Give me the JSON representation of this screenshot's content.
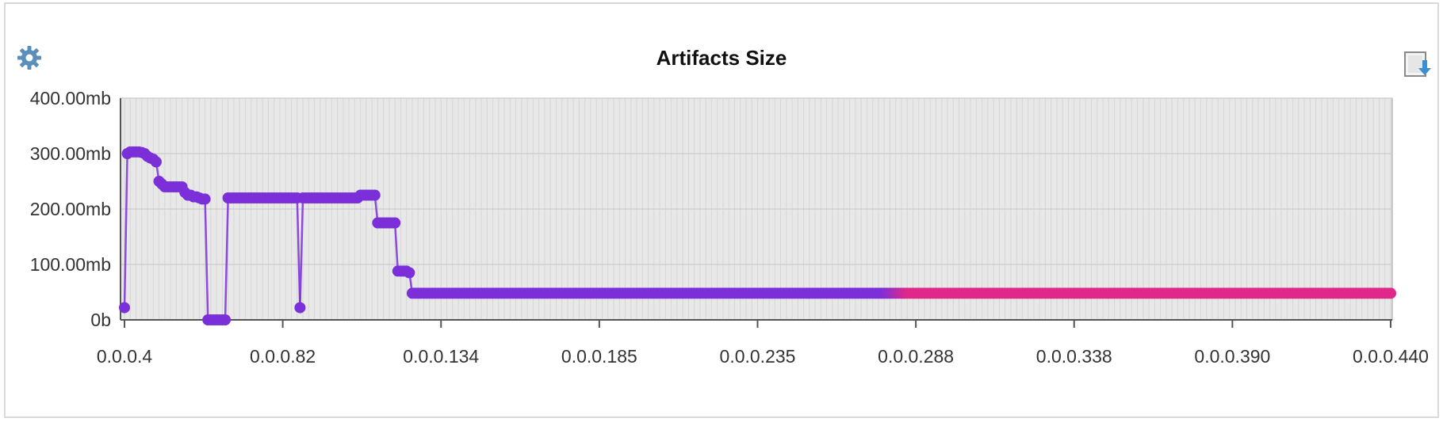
{
  "toolbar": {
    "settings_icon": "gear-icon",
    "export_icon": "export-download-icon",
    "accent_color": "#5b8fb9"
  },
  "chart_data": {
    "type": "line",
    "title": "Artifacts Size",
    "xlabel": "",
    "ylabel": "",
    "y_unit": "mb",
    "ylim": [
      0,
      400
    ],
    "y_ticks": [
      {
        "value": 0,
        "label": "0b"
      },
      {
        "value": 100,
        "label": "100.00mb"
      },
      {
        "value": 200,
        "label": "200.00mb"
      },
      {
        "value": 300,
        "label": "300.00mb"
      },
      {
        "value": 400,
        "label": "400.00mb"
      }
    ],
    "x_tick_labels": [
      "0.0.0.4",
      "0.0.0.82",
      "0.0.0.134",
      "0.0.0.185",
      "0.0.0.235",
      "0.0.0.288",
      "0.0.0.338",
      "0.0.0.390",
      "0.0.0.440"
    ],
    "grid": true,
    "legend": "none",
    "colors": {
      "line_start": "#7b2fd9",
      "line_end": "#e0288a",
      "grid": "#d0d0d0",
      "plot_bg": "#e8e8e8"
    },
    "series": [
      {
        "values": [
          22,
          300,
          303,
          303,
          303,
          303,
          302,
          300,
          295,
          292,
          290,
          285,
          250,
          245,
          240,
          240,
          240,
          240,
          240,
          240,
          240,
          230,
          225,
          225,
          222,
          222,
          220,
          218,
          218,
          0,
          0,
          0,
          0,
          0,
          0,
          0,
          220,
          220,
          220,
          220,
          220,
          220,
          220,
          220,
          220,
          220,
          220,
          220,
          220,
          220,
          220,
          220,
          220,
          220,
          220,
          220,
          220,
          220,
          220,
          220,
          220,
          22,
          220,
          220,
          220,
          220,
          220,
          220,
          220,
          220,
          220,
          220,
          220,
          220,
          220,
          220,
          220,
          220,
          220,
          220,
          220,
          220,
          225,
          225,
          225,
          225,
          225,
          225,
          175,
          175,
          175,
          175,
          175,
          175,
          175,
          88,
          88,
          88,
          88,
          85,
          48
        ],
        "tail_from_index": 101,
        "tail_value": 48,
        "total_points": 441
      }
    ]
  }
}
